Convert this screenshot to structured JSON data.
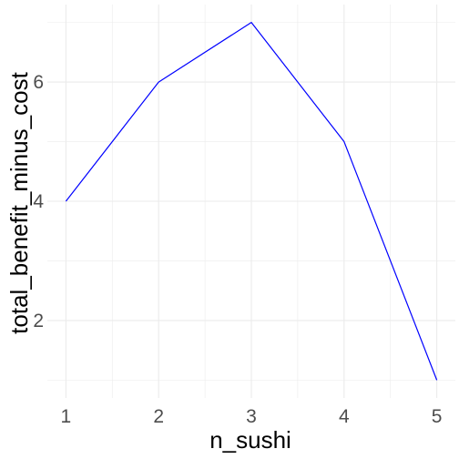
{
  "chart_data": {
    "type": "line",
    "title": "",
    "xlabel": "n_sushi",
    "ylabel": "total_benefit_minus_cost",
    "x": [
      1,
      2,
      3,
      4,
      5
    ],
    "series": [
      {
        "values": [
          4,
          6,
          7,
          5,
          1
        ],
        "color": "#0000ff"
      }
    ],
    "xlim": [
      0.8,
      5.2
    ],
    "ylim": [
      0.7,
      7.3
    ],
    "x_ticks": [
      "1",
      "2",
      "3",
      "4",
      "5"
    ],
    "y_ticks": [
      "2",
      "4",
      "6"
    ],
    "grid": true,
    "legend": "none",
    "colors": {
      "grid": "#ebebeb",
      "line": "#0000ff",
      "tick_text": "#4d4d4d"
    }
  }
}
